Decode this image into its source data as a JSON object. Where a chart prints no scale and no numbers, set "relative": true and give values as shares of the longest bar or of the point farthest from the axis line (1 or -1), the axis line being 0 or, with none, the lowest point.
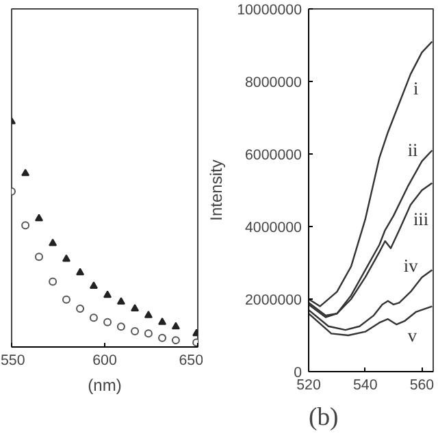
{
  "chart_data": [
    {
      "type": "scatter",
      "relative": true,
      "xlabel": "(nm)",
      "xlim": [
        550,
        650
      ],
      "xticks": [
        550,
        600,
        650
      ],
      "tick_labels": "x",
      "grid": false,
      "x": [
        550,
        557.4,
        564.7,
        572.1,
        579.4,
        586.8,
        594.1,
        601.5,
        608.8,
        616.2,
        623.5,
        630.9,
        638.2,
        649.3
      ],
      "series": [
        {
          "color": "#222222",
          "marker": "triangle",
          "values": [
            1.0,
            0.77,
            0.57,
            0.46,
            0.39,
            0.33,
            0.27,
            0.23,
            0.2,
            0.17,
            0.14,
            0.11,
            0.09,
            0.06
          ]
        },
        {
          "color": "#555555",
          "marker": "circle",
          "values": [
            0.69,
            0.54,
            0.4,
            0.29,
            0.21,
            0.17,
            0.13,
            0.11,
            0.09,
            0.07,
            0.06,
            0.04,
            0.03,
            0.02
          ]
        }
      ]
    },
    {
      "type": "line",
      "ylabel": "Intensity",
      "xlim": [
        520,
        564
      ],
      "xticks": [
        520,
        540,
        560
      ],
      "ylim": [
        0,
        10000000
      ],
      "yticks": [
        0,
        2000000,
        4000000,
        6000000,
        8000000,
        10000000
      ],
      "grid": false,
      "series": [
        {
          "name": "i",
          "color": "#333333",
          "x": [
            520,
            524,
            530,
            535,
            540,
            545,
            548,
            552,
            556,
            560,
            563.6
          ],
          "values": [
            2000000,
            1800000,
            2200000,
            2900000,
            4200000,
            5900000,
            6600000,
            7400000,
            8200000,
            8800000,
            9100000
          ]
        },
        {
          "name": "ii",
          "color": "#333333",
          "x": [
            520,
            526,
            530,
            535,
            540,
            545,
            547,
            550,
            555,
            560,
            563.6
          ],
          "values": [
            1900000,
            1550000,
            1600000,
            2100000,
            2800000,
            3500000,
            3900000,
            4300000,
            5100000,
            5800000,
            6100000
          ]
        },
        {
          "name": "iii",
          "color": "#333333",
          "x": [
            520,
            526,
            530,
            535,
            540,
            545,
            547,
            549,
            552,
            556,
            560,
            563.6
          ],
          "values": [
            1850000,
            1500000,
            1600000,
            2000000,
            2600000,
            3300000,
            3600000,
            3400000,
            3900000,
            4600000,
            5000000,
            5200000
          ]
        },
        {
          "name": "iv",
          "color": "#333333",
          "x": [
            520,
            527,
            533,
            538,
            543,
            546,
            548,
            550,
            552,
            556,
            560,
            563.6
          ],
          "values": [
            1700000,
            1250000,
            1150000,
            1250000,
            1550000,
            1850000,
            1950000,
            1850000,
            1900000,
            2200000,
            2600000,
            2800000
          ]
        },
        {
          "name": "v",
          "color": "#333333",
          "x": [
            520,
            528,
            534,
            540,
            545,
            548,
            551,
            554,
            558,
            563.6
          ],
          "values": [
            1600000,
            1050000,
            1000000,
            1100000,
            1350000,
            1450000,
            1300000,
            1400000,
            1650000,
            1800000
          ]
        }
      ],
      "annotations": [
        "(b)"
      ]
    }
  ]
}
